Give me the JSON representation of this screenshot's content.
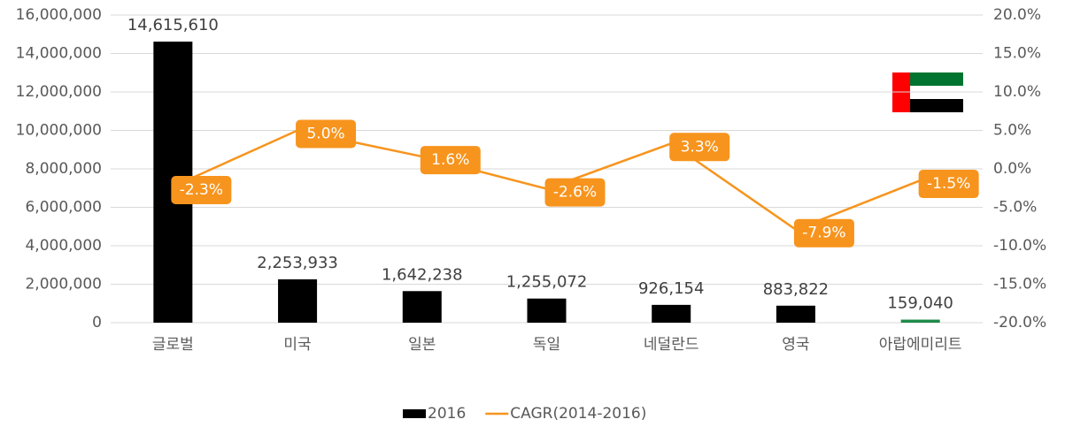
{
  "chart_data": {
    "type": "bar-line",
    "categories": [
      "글로벌",
      "미국",
      "일본",
      "독일",
      "네덜란드",
      "영국",
      "아랍에미리트"
    ],
    "series": [
      {
        "name": "2016",
        "type": "bar",
        "color": "#000000",
        "colors": [
          "#000000",
          "#000000",
          "#000000",
          "#000000",
          "#000000",
          "#000000",
          "#1e8a4a"
        ],
        "values": [
          14615610,
          2253933,
          1642238,
          1255072,
          926154,
          883822,
          159040
        ],
        "value_labels": [
          "14,615,610",
          "2,253,933",
          "1,642,238",
          "1,255,072",
          "926,154",
          "883,822",
          "159,040"
        ]
      },
      {
        "name": "CAGR(2014-2016)",
        "type": "line",
        "axis": "y2",
        "color": "#f7941d",
        "values": [
          -2.3,
          5.0,
          1.6,
          -2.6,
          3.3,
          -7.9,
          -1.5
        ],
        "value_labels": [
          "-2.3%",
          "5.0%",
          "1.6%",
          "-2.6%",
          "3.3%",
          "-7.9%",
          "-1.5%"
        ]
      }
    ],
    "ylim": [
      0,
      16000000
    ],
    "yticks": [
      0,
      {
        "value": 2000000,
        "label": "2,000,000"
      },
      {
        "value": 4000000,
        "label": "4,000,000"
      },
      {
        "value": 6000000,
        "label": "6,000,000"
      },
      {
        "value": 8000000,
        "label": "8,000,000"
      },
      {
        "value": 10000000,
        "label": "10,000,000"
      },
      {
        "value": 12000000,
        "label": "12,000,000"
      },
      {
        "value": 14000000,
        "label": "14,000,000"
      },
      {
        "value": 16000000,
        "label": "16,000,000"
      }
    ],
    "y2lim": [
      -20,
      20
    ],
    "y2ticks": [
      {
        "value": -20,
        "label": "-20.0%"
      },
      {
        "value": -15,
        "label": "-15.0%"
      },
      {
        "value": -10,
        "label": "-10.0%"
      },
      {
        "value": -5,
        "label": "-5.0%"
      },
      {
        "value": 0,
        "label": "0.0%"
      },
      {
        "value": 5,
        "label": "5.0%"
      },
      {
        "value": 10,
        "label": "10.0%"
      },
      {
        "value": 15,
        "label": "15.0%"
      },
      {
        "value": 20,
        "label": "20.0%"
      }
    ],
    "grid": true,
    "legend": "bottom"
  }
}
